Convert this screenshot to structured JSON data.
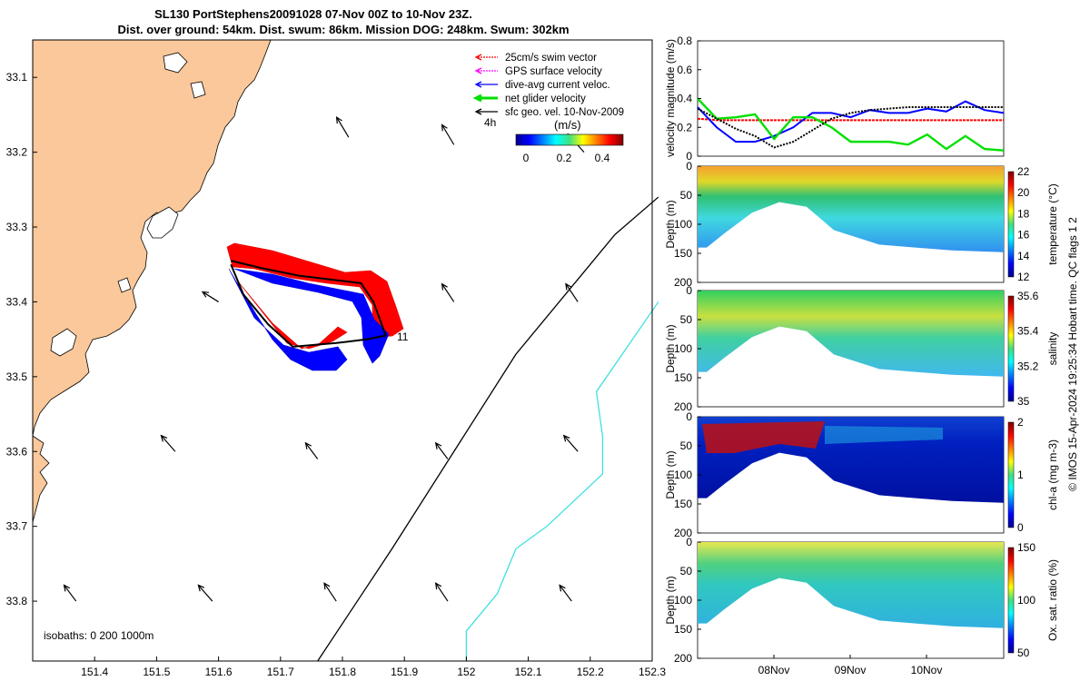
{
  "figure": {
    "title_line1": "SL130 PortStephens20091028 07-Nov 00Z to 10-Nov 23Z.",
    "title_line2": "Dist. over ground: 54km. Dist. swum: 86km. Mission DOG: 248km. Swum: 302km",
    "footer": "© IMOS 15-Apr-2024 19:25:34 Hobart time. QC flags 1  2",
    "colors": {
      "land": "#FAC89A",
      "swim": "#FF0000",
      "gps": "#FF00FF",
      "dive": "#0000FF",
      "net": "#00E000",
      "geo": "#000000",
      "isobath200": "#000000",
      "isobath1000": "#40E0E0"
    }
  },
  "map": {
    "xlim": [
      151.3,
      152.3
    ],
    "ylim": [
      33.88,
      33.05
    ],
    "xticks": [
      "151.4",
      "151.5",
      "151.6",
      "151.7",
      "151.8",
      "151.9",
      "152",
      "152.1",
      "152.2",
      "152.3"
    ],
    "yticks": [
      "33.1",
      "33.2",
      "33.3",
      "33.4",
      "33.5",
      "33.6",
      "33.7",
      "33.8"
    ],
    "legend": [
      {
        "label": "25cm/s swim vector",
        "color": "#FF0000",
        "style": "dotted"
      },
      {
        "label": "GPS surface velocity",
        "color": "#FF00FF",
        "style": "dotted"
      },
      {
        "label": "dive-avg current veloc.",
        "color": "#0000FF",
        "style": "solid"
      },
      {
        "label": "net glider velocity",
        "color": "#00E000",
        "style": "thick"
      },
      {
        "label": "sfc geo. vel. 10-Nov-2009",
        "color": "#000000",
        "style": "solid"
      }
    ],
    "colorbar_title": "(m/s)",
    "colorbar_label": "4h",
    "colorbar_ticks": [
      "0",
      "0.2",
      "0.4"
    ],
    "isobath_label": "isobaths: 0   200  1000m",
    "track_label": "11",
    "geo_arrows": [
      {
        "lon": 151.81,
        "lat": 33.18,
        "u": -0.6,
        "v": -1
      },
      {
        "lon": 151.98,
        "lat": 33.19,
        "u": -0.6,
        "v": -1
      },
      {
        "lon": 152.19,
        "lat": 33.2,
        "u": -0.8,
        "v": -0.9
      },
      {
        "lon": 151.6,
        "lat": 33.4,
        "u": -0.8,
        "v": -0.5
      },
      {
        "lon": 151.98,
        "lat": 33.4,
        "u": -0.6,
        "v": -0.9
      },
      {
        "lon": 152.18,
        "lat": 33.4,
        "u": -0.6,
        "v": -0.9
      },
      {
        "lon": 151.53,
        "lat": 33.6,
        "u": -0.7,
        "v": -0.8
      },
      {
        "lon": 151.76,
        "lat": 33.61,
        "u": -0.6,
        "v": -0.8
      },
      {
        "lon": 151.97,
        "lat": 33.61,
        "u": -0.6,
        "v": -0.8
      },
      {
        "lon": 152.18,
        "lat": 33.6,
        "u": -0.7,
        "v": -0.8
      },
      {
        "lon": 151.37,
        "lat": 33.8,
        "u": -0.6,
        "v": -0.8
      },
      {
        "lon": 151.59,
        "lat": 33.8,
        "u": -0.7,
        "v": -0.8
      },
      {
        "lon": 151.79,
        "lat": 33.8,
        "u": -0.6,
        "v": -0.9
      },
      {
        "lon": 151.97,
        "lat": 33.8,
        "u": -0.6,
        "v": -0.9
      },
      {
        "lon": 152.17,
        "lat": 33.8,
        "u": -0.6,
        "v": -0.8
      }
    ],
    "track": [
      {
        "lon": 151.62,
        "lat": 33.345
      },
      {
        "lon": 151.67,
        "lat": 33.355
      },
      {
        "lon": 151.73,
        "lat": 33.365
      },
      {
        "lon": 151.78,
        "lat": 33.37
      },
      {
        "lon": 151.83,
        "lat": 33.375
      },
      {
        "lon": 151.85,
        "lat": 33.4
      },
      {
        "lon": 151.87,
        "lat": 33.445
      },
      {
        "lon": 151.84,
        "lat": 33.45
      },
      {
        "lon": 151.79,
        "lat": 33.455
      },
      {
        "lon": 151.72,
        "lat": 33.46
      },
      {
        "lon": 151.68,
        "lat": 33.43
      },
      {
        "lon": 151.64,
        "lat": 33.39
      },
      {
        "lon": 151.62,
        "lat": 33.35
      }
    ],
    "isobath_200": [
      {
        "lon": 152.31,
        "lat": 33.26
      },
      {
        "lon": 152.24,
        "lat": 33.31
      },
      {
        "lon": 152.18,
        "lat": 33.37
      },
      {
        "lon": 152.08,
        "lat": 33.47
      },
      {
        "lon": 151.98,
        "lat": 33.6
      },
      {
        "lon": 151.88,
        "lat": 33.73
      },
      {
        "lon": 151.76,
        "lat": 33.88
      }
    ],
    "isobath_1000": [
      {
        "lon": 152.31,
        "lat": 33.4
      },
      {
        "lon": 152.26,
        "lat": 33.46
      },
      {
        "lon": 152.21,
        "lat": 33.52
      },
      {
        "lon": 152.22,
        "lat": 33.58
      },
      {
        "lon": 152.22,
        "lat": 33.63
      },
      {
        "lon": 152.13,
        "lat": 33.7
      },
      {
        "lon": 152.08,
        "lat": 33.73
      },
      {
        "lon": 152.05,
        "lat": 33.79
      },
      {
        "lon": 152.0,
        "lat": 33.84
      },
      {
        "lon": 152.0,
        "lat": 33.88
      }
    ]
  },
  "velocity": {
    "ylabel": "velocity magnitude (m/s)",
    "ylim": [
      0,
      0.8
    ],
    "yticks": [
      "0",
      "0.2",
      "0.4",
      "0.6",
      "0.8"
    ],
    "t": [
      0,
      0.25,
      0.5,
      0.75,
      1.0,
      1.25,
      1.5,
      1.75,
      2.0,
      2.25,
      2.5,
      2.75,
      3.0,
      3.25,
      3.5,
      3.75,
      4.0
    ],
    "series": [
      {
        "name": "swim",
        "color": "#FF0000",
        "values": [
          0.26,
          0.25,
          0.25,
          0.25,
          0.25,
          0.25,
          0.25,
          0.25,
          0.25,
          0.25,
          0.25,
          0.25,
          0.25,
          0.25,
          0.25,
          0.25,
          0.25
        ]
      },
      {
        "name": "dive-avg",
        "color": "#0000FF",
        "values": [
          0.34,
          0.2,
          0.1,
          0.1,
          0.14,
          0.2,
          0.3,
          0.3,
          0.27,
          0.32,
          0.3,
          0.3,
          0.33,
          0.31,
          0.38,
          0.32,
          0.3
        ]
      },
      {
        "name": "net",
        "color": "#00E000",
        "values": [
          0.4,
          0.26,
          0.27,
          0.29,
          0.12,
          0.27,
          0.27,
          0.2,
          0.1,
          0.1,
          0.1,
          0.08,
          0.15,
          0.05,
          0.14,
          0.05,
          0.04
        ]
      },
      {
        "name": "geo",
        "color": "#000000",
        "values": [
          0.33,
          0.26,
          0.19,
          0.14,
          0.06,
          0.1,
          0.18,
          0.26,
          0.3,
          0.32,
          0.33,
          0.34,
          0.34,
          0.34,
          0.34,
          0.34,
          0.34
        ]
      }
    ]
  },
  "sections": {
    "xticks": [
      "08Nov",
      "09Nov",
      "10Nov"
    ],
    "ylabel": "Depth (m)",
    "yticks": [
      "0",
      "50",
      "100",
      "150",
      "200"
    ],
    "panels": [
      {
        "name": "temperature",
        "cblabel": "temperature (°C)",
        "cbticks": [
          "12",
          "14",
          "16",
          "18",
          "20",
          "22"
        ]
      },
      {
        "name": "salinity",
        "cblabel": "salinity",
        "cbticks": [
          "35",
          "35.2",
          "35.4",
          "35.6"
        ]
      },
      {
        "name": "chl-a",
        "cblabel": "chl-a (mg m-3)",
        "cbticks": [
          "0",
          "1",
          "2"
        ]
      },
      {
        "name": "oxygen",
        "cblabel": "Ox. sat. ratio (%)",
        "cbticks": [
          "50",
          "100",
          "150"
        ]
      }
    ]
  }
}
